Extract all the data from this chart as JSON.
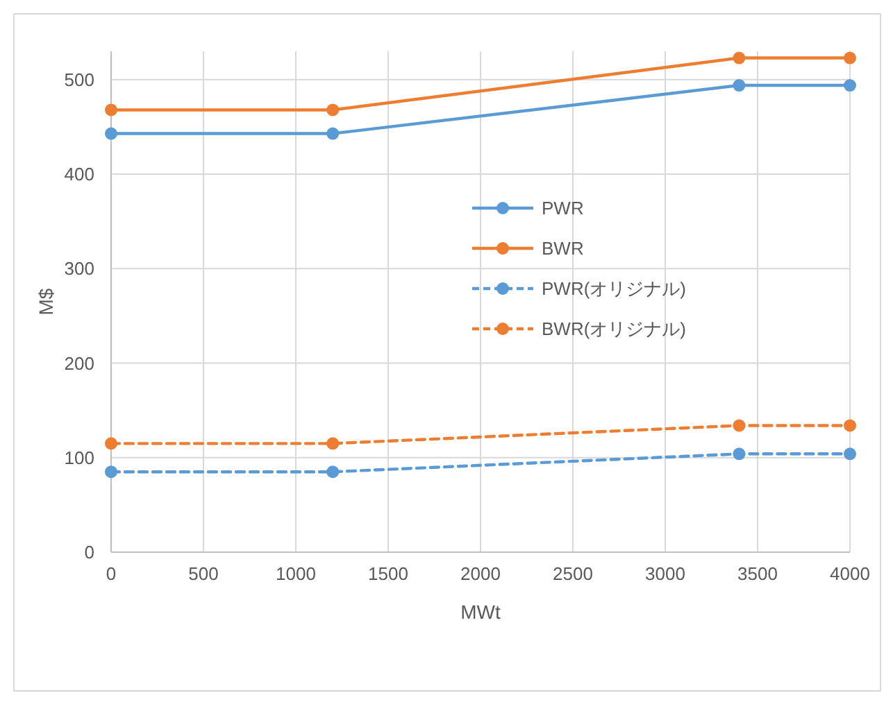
{
  "chart_data": {
    "type": "line",
    "xlabel": "MWt",
    "ylabel": "M$",
    "xlim": [
      0,
      4000
    ],
    "ylim": [
      0,
      530
    ],
    "xticks": [
      0,
      500,
      1000,
      1500,
      2000,
      2500,
      3000,
      3500,
      4000
    ],
    "yticks": [
      0,
      100,
      200,
      300,
      400,
      500
    ],
    "grid": true,
    "legend": "right",
    "marker": "circle",
    "x": [
      0,
      1200,
      3400,
      4000
    ],
    "series": [
      {
        "name": "PWR",
        "color": "#5b9bd5",
        "line_style": "solid",
        "values": [
          443,
          443,
          494,
          494
        ]
      },
      {
        "name": "BWR",
        "color": "#ed7d31",
        "line_style": "solid",
        "values": [
          468,
          468,
          523,
          523
        ]
      },
      {
        "name": "PWR(オリジナル)",
        "color": "#5b9bd5",
        "line_style": "dashed",
        "values": [
          85,
          85,
          104,
          104
        ]
      },
      {
        "name": "BWR(オリジナル)",
        "color": "#ed7d31",
        "line_style": "dashed",
        "values": [
          115,
          115,
          134,
          134
        ]
      }
    ]
  }
}
